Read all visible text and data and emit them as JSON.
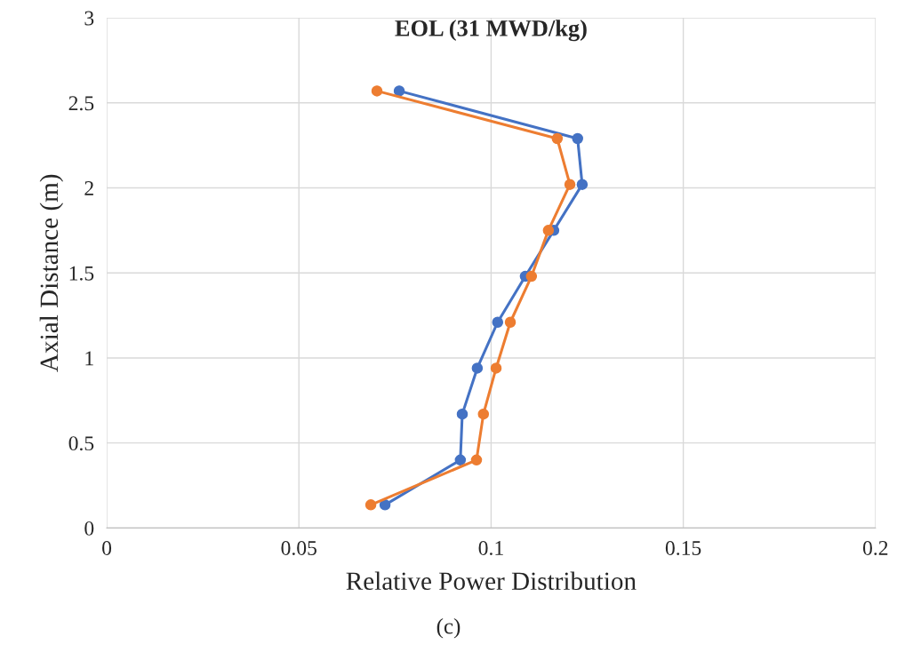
{
  "chart_data": {
    "type": "line",
    "title": "EOL (31 MWD/kg)",
    "xlabel": "Relative Power Distribution",
    "ylabel": "Axial Distance (m)",
    "annotations": [
      "(c)"
    ],
    "series": [
      {
        "color": "#4472c4",
        "x": [
          0.0724,
          0.092,
          0.0925,
          0.0964,
          0.1017,
          0.1089,
          0.1163,
          0.1237,
          0.1225,
          0.0761
        ],
        "values": [
          0.136,
          0.4,
          0.67,
          0.94,
          1.21,
          1.48,
          1.75,
          2.02,
          2.29,
          2.57
        ]
      },
      {
        "color": "#ed7d31",
        "x": [
          0.0687,
          0.0962,
          0.098,
          0.1013,
          0.105,
          0.1105,
          0.1149,
          0.1205,
          0.1172,
          0.0703
        ],
        "values": [
          0.136,
          0.4,
          0.67,
          0.94,
          1.21,
          1.48,
          1.75,
          2.02,
          2.29,
          2.57
        ]
      }
    ],
    "xlim": [
      0,
      0.2
    ],
    "xticks": [
      0,
      0.05,
      0.1,
      0.15,
      0.2
    ],
    "ylim": [
      0,
      3
    ],
    "yticks": [
      0,
      0.5,
      1,
      1.5,
      2,
      2.5,
      3
    ],
    "grid": true,
    "marker": "circle",
    "line_style": "solid"
  }
}
